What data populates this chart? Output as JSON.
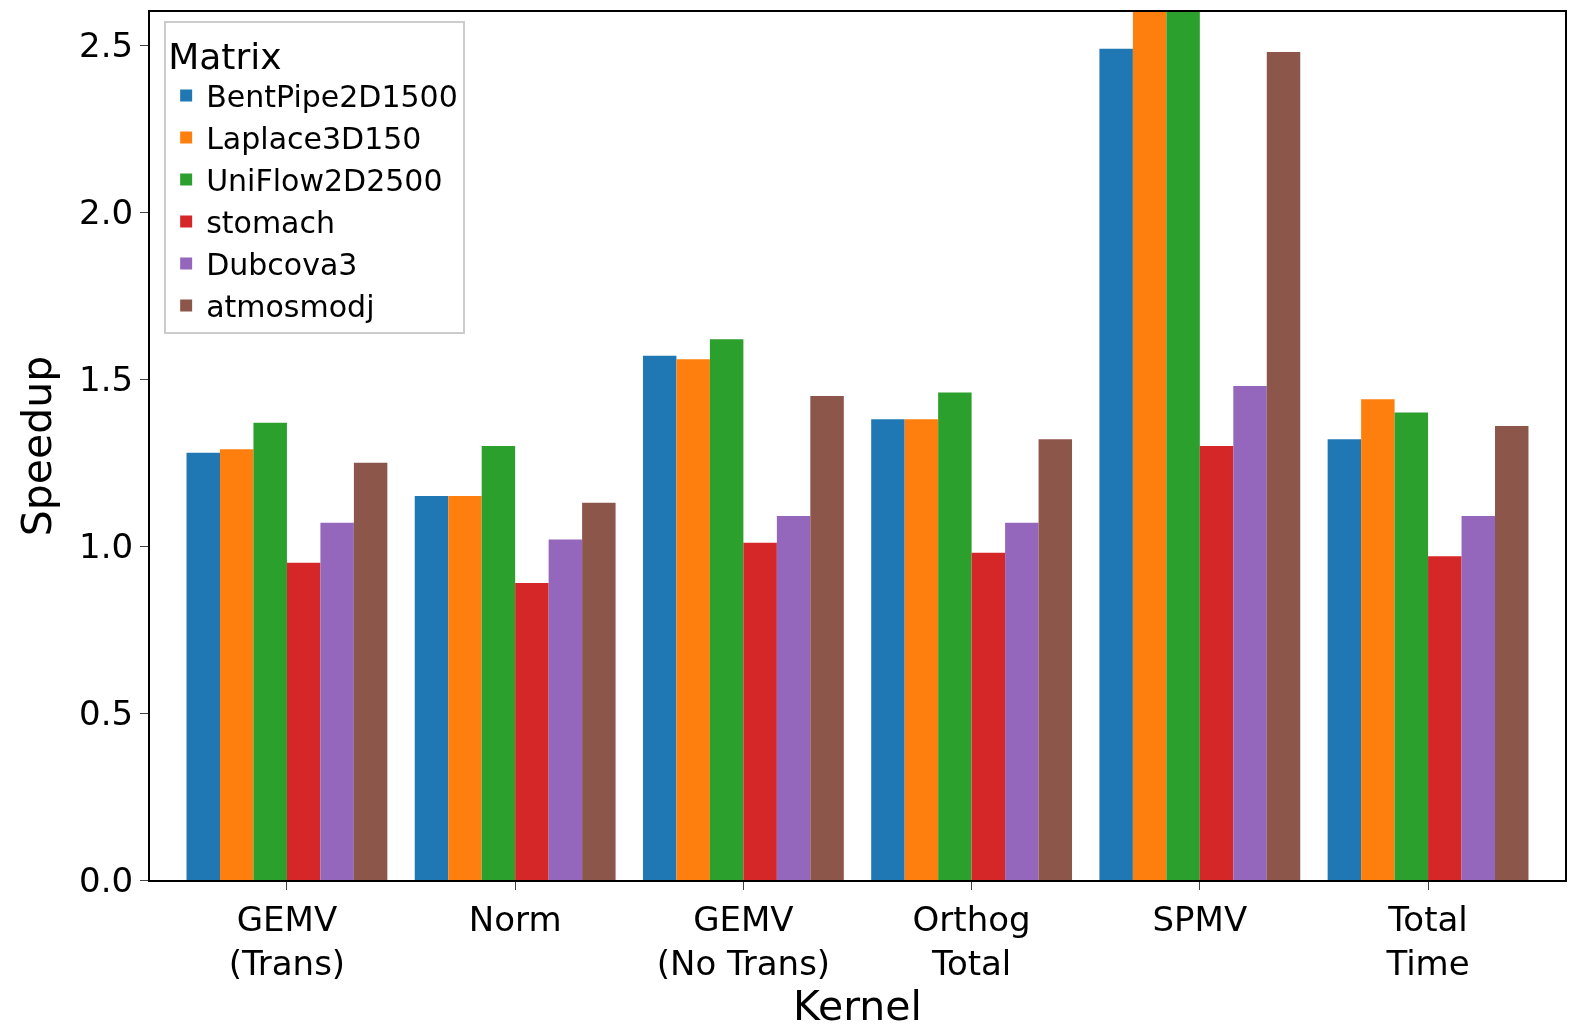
{
  "chart_data": {
    "type": "bar",
    "xlabel": "Kernel",
    "ylabel": "Speedup",
    "legend_title": "Matrix",
    "categories": [
      "GEMV\n(Trans)",
      "Norm",
      "GEMV\n(No Trans)",
      "Orthog\nTotal",
      "SPMV",
      "Total\nTime"
    ],
    "series": [
      {
        "name": "BentPipe2D1500",
        "color": "#1f77b4",
        "values": [
          1.28,
          1.15,
          1.57,
          1.38,
          2.49,
          1.32
        ]
      },
      {
        "name": "Laplace3D150",
        "color": "#ff7f0e",
        "values": [
          1.29,
          1.15,
          1.56,
          1.38,
          2.6,
          1.44
        ]
      },
      {
        "name": "UniFlow2D2500",
        "color": "#2ca02c",
        "values": [
          1.37,
          1.3,
          1.62,
          1.46,
          2.6,
          1.4
        ]
      },
      {
        "name": "stomach",
        "color": "#d62728",
        "values": [
          0.95,
          0.89,
          1.01,
          0.98,
          1.3,
          0.97
        ]
      },
      {
        "name": "Dubcova3",
        "color": "#9467bd",
        "values": [
          1.07,
          1.02,
          1.09,
          1.07,
          1.48,
          1.09
        ]
      },
      {
        "name": "atmosmodj",
        "color": "#8c564b",
        "values": [
          1.25,
          1.13,
          1.45,
          1.32,
          2.48,
          1.36
        ]
      }
    ],
    "ylim": [
      0,
      2.6
    ],
    "yticks": [
      {
        "value": 0,
        "label": "0.0"
      },
      0.5,
      {
        "value": 1,
        "label": "1.0"
      },
      1.5,
      {
        "value": 2,
        "label": "2.0"
      },
      2.5
    ],
    "legend": "top left"
  }
}
